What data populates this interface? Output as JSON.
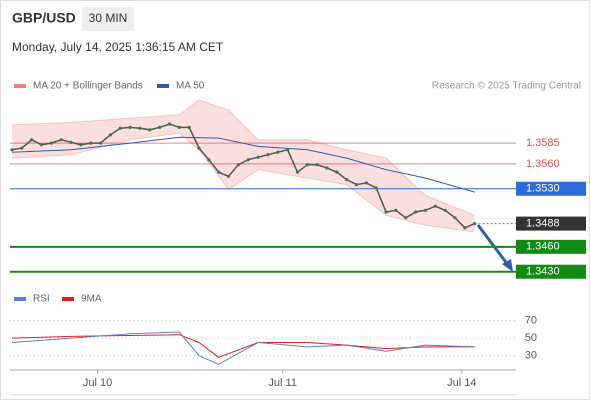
{
  "header": {
    "symbol": "GBP/USD",
    "timeframe": "30 MIN",
    "date": "Monday, July 14, 2025 1:36:15 AM CET",
    "source": "Research © 2025 Trading Central"
  },
  "chart_data": [
    {
      "type": "line",
      "color": "#555555",
      "x": [
        0,
        1,
        2,
        3,
        4,
        5,
        6,
        7,
        8,
        9,
        10,
        11,
        12,
        13,
        14,
        15,
        16,
        17,
        18,
        19,
        20,
        21,
        22,
        23,
        24,
        25,
        26,
        27,
        28,
        29,
        30,
        31,
        32,
        33,
        34,
        35,
        36,
        37,
        38,
        39,
        40,
        41,
        42,
        43,
        44,
        45,
        46,
        47
      ],
      "values": [
        1.3577,
        1.3579,
        1.3589,
        1.3583,
        1.3585,
        1.3589,
        1.3586,
        1.3583,
        1.3585,
        1.3585,
        1.3595,
        1.3603,
        1.3604,
        1.3603,
        1.3601,
        1.3604,
        1.3608,
        1.3604,
        1.3604,
        1.3579,
        1.3565,
        1.355,
        1.3545,
        1.3559,
        1.3565,
        1.3568,
        1.3571,
        1.3574,
        1.3577,
        1.355,
        1.3559,
        1.3559,
        1.3555,
        1.355,
        1.3541,
        1.3535,
        1.3537,
        1.3531,
        1.3502,
        1.3504,
        1.3495,
        1.3502,
        1.3504,
        1.3509,
        1.3504,
        1.3495,
        1.3483,
        1.3488
      ],
      "series": [
        {
          "name": "MA 20 + Bollinger Bands",
          "color": "#f08080",
          "x": [
            0,
            6,
            12,
            17,
            19,
            22,
            25,
            30,
            34,
            38,
            42,
            47
          ],
          "upper": [
            1.3607,
            1.361,
            1.3615,
            1.3619,
            1.3637,
            1.3625,
            1.3589,
            1.3589,
            1.3577,
            1.3567,
            1.3522,
            1.3498
          ],
          "lower": [
            1.3567,
            1.3571,
            1.3589,
            1.3597,
            1.3577,
            1.3529,
            1.3553,
            1.3543,
            1.3535,
            1.3498,
            1.3486,
            1.3478
          ]
        },
        {
          "name": "MA 50",
          "color": "#2e5aa8",
          "x": [
            0,
            6,
            12,
            17,
            21,
            25,
            30,
            34,
            38,
            42,
            47
          ],
          "values": [
            1.3574,
            1.3577,
            1.3585,
            1.3592,
            1.3591,
            1.3581,
            1.3577,
            1.3567,
            1.3553,
            1.3543,
            1.3526
          ]
        }
      ],
      "levels": [
        {
          "value": 1.3585,
          "label": "1.3585",
          "color": "#e05050",
          "style": "text"
        },
        {
          "value": 1.356,
          "label": "1.3560",
          "color": "#e05050",
          "style": "text"
        },
        {
          "value": 1.353,
          "label": "1.3530",
          "color": "#2e6bd6",
          "style": "box"
        },
        {
          "value": 1.3488,
          "label": "1.3488",
          "color": "#333333",
          "style": "current"
        },
        {
          "value": 1.346,
          "label": "1.3460",
          "color": "#138a13",
          "style": "box"
        },
        {
          "value": 1.343,
          "label": "1.3430",
          "color": "#138a13",
          "style": "box"
        }
      ],
      "xlim": [
        -0.2,
        51.2
      ],
      "ylim": [
        1.3414,
        1.3643
      ],
      "xticks": [
        {
          "value": 8.7,
          "label": "Jul 10"
        },
        {
          "value": 27.5,
          "label": "Jul 11"
        },
        {
          "value": 45.7,
          "label": "Jul 14"
        }
      ]
    },
    {
      "type": "line",
      "series": [
        {
          "name": "RSI",
          "color": "#5b7fd6",
          "x": [
            0,
            6,
            12,
            17,
            19,
            21,
            25,
            30,
            34,
            38,
            42,
            47
          ],
          "values": [
            45,
            50,
            55,
            57,
            30,
            20,
            45,
            40,
            42,
            35,
            42,
            40
          ]
        },
        {
          "name": "9MA",
          "color": "#e02020",
          "x": [
            0,
            6,
            12,
            17,
            19,
            21,
            25,
            30,
            34,
            38,
            42,
            47
          ],
          "values": [
            50,
            52,
            53,
            54,
            45,
            28,
            45,
            45,
            42,
            38,
            40,
            40
          ]
        }
      ],
      "xlim": [
        -0.2,
        51.2
      ],
      "ylim": [
        10,
        80
      ],
      "yticks": [
        70,
        50,
        30
      ]
    }
  ]
}
